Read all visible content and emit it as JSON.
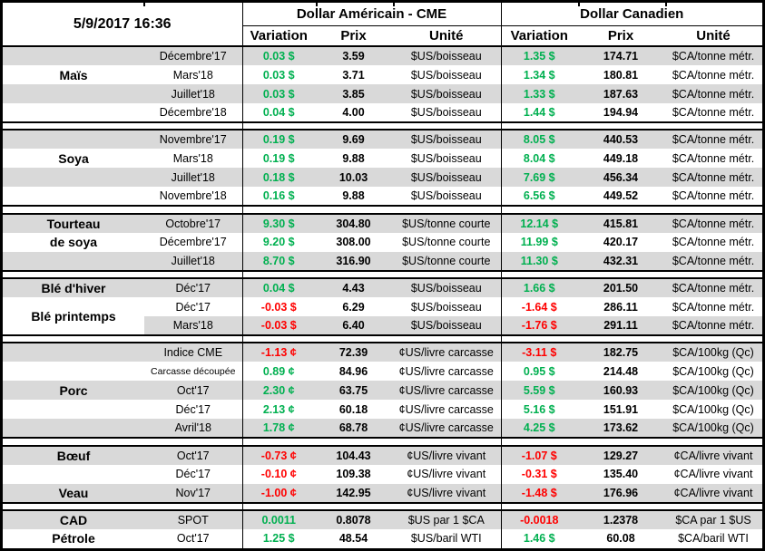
{
  "header": {
    "datetime": "5/9/2017 16:36",
    "us_section_title": "Dollar Américain - CME",
    "ca_section_title": "Dollar Canadien",
    "columns": {
      "variation": "Variation",
      "prix": "Prix",
      "unite": "Unité"
    }
  },
  "colors": {
    "positive": "#00B050",
    "negative": "#FF0000",
    "stripe": "#D9D9D9",
    "text": "#000000"
  },
  "groups": [
    {
      "name": "Maïs",
      "rows": [
        {
          "month": "Décembre'17",
          "shade": true,
          "us": {
            "variation": "0.03 $",
            "prix": "3.59",
            "unite": "$US/boisseau"
          },
          "ca": {
            "variation": "1.35 $",
            "prix": "174.71",
            "unite": "$CA/tonne métr."
          }
        },
        {
          "label": "Maïs",
          "month": "Mars'18",
          "shade": false,
          "us": {
            "variation": "0.03 $",
            "prix": "3.71",
            "unite": "$US/boisseau"
          },
          "ca": {
            "variation": "1.34 $",
            "prix": "180.81",
            "unite": "$CA/tonne métr."
          }
        },
        {
          "month": "Juillet'18",
          "shade": true,
          "us": {
            "variation": "0.03 $",
            "prix": "3.85",
            "unite": "$US/boisseau"
          },
          "ca": {
            "variation": "1.33 $",
            "prix": "187.63",
            "unite": "$CA/tonne métr."
          }
        },
        {
          "month": "Décembre'18",
          "shade": false,
          "us": {
            "variation": "0.04 $",
            "prix": "4.00",
            "unite": "$US/boisseau"
          },
          "ca": {
            "variation": "1.44 $",
            "prix": "194.94",
            "unite": "$CA/tonne métr."
          }
        }
      ]
    },
    {
      "name": "Soya",
      "rows": [
        {
          "month": "Novembre'17",
          "shade": true,
          "us": {
            "variation": "0.19 $",
            "prix": "9.69",
            "unite": "$US/boisseau"
          },
          "ca": {
            "variation": "8.05 $",
            "prix": "440.53",
            "unite": "$CA/tonne métr."
          }
        },
        {
          "label": "Soya",
          "month": "Mars'18",
          "shade": false,
          "us": {
            "variation": "0.19 $",
            "prix": "9.88",
            "unite": "$US/boisseau"
          },
          "ca": {
            "variation": "8.04 $",
            "prix": "449.18",
            "unite": "$CA/tonne métr."
          }
        },
        {
          "month": "Juillet'18",
          "shade": true,
          "us": {
            "variation": "0.18 $",
            "prix": "10.03",
            "unite": "$US/boisseau"
          },
          "ca": {
            "variation": "7.69 $",
            "prix": "456.34",
            "unite": "$CA/tonne métr."
          }
        },
        {
          "month": "Novembre'18",
          "shade": false,
          "us": {
            "variation": "0.16 $",
            "prix": "9.88",
            "unite": "$US/boisseau"
          },
          "ca": {
            "variation": "6.56 $",
            "prix": "449.52",
            "unite": "$CA/tonne métr."
          }
        }
      ]
    },
    {
      "name": "Tourteau de soya",
      "rows": [
        {
          "label": "Tourteau",
          "month": "Octobre'17",
          "shade": true,
          "us": {
            "variation": "9.30 $",
            "prix": "304.80",
            "unite": "$US/tonne courte"
          },
          "ca": {
            "variation": "12.14 $",
            "prix": "415.81",
            "unite": "$CA/tonne métr."
          }
        },
        {
          "label": "de soya",
          "month": "Décembre'17",
          "shade": false,
          "us": {
            "variation": "9.20 $",
            "prix": "308.00",
            "unite": "$US/tonne courte"
          },
          "ca": {
            "variation": "11.99 $",
            "prix": "420.17",
            "unite": "$CA/tonne métr."
          }
        },
        {
          "month": "Juillet'18",
          "shade": true,
          "us": {
            "variation": "8.70 $",
            "prix": "316.90",
            "unite": "$US/tonne courte"
          },
          "ca": {
            "variation": "11.30 $",
            "prix": "432.31",
            "unite": "$CA/tonne métr."
          }
        }
      ]
    },
    {
      "name": "Blé",
      "rows": [
        {
          "label": "Blé d'hiver",
          "month": "Déc'17",
          "shade": true,
          "us": {
            "variation": "0.04 $",
            "prix": "4.43",
            "unite": "$US/boisseau"
          },
          "ca": {
            "variation": "1.66 $",
            "prix": "201.50",
            "unite": "$CA/tonne métr."
          }
        },
        {
          "label": "Blé printemps",
          "label_rowspan": 2,
          "month": "Déc'17",
          "shade": false,
          "us": {
            "variation": "-0.03 $",
            "prix": "6.29",
            "unite": "$US/boisseau"
          },
          "ca": {
            "variation": "-1.64 $",
            "prix": "286.11",
            "unite": "$CA/tonne métr."
          }
        },
        {
          "skip_label": true,
          "month": "Mars'18",
          "shade": true,
          "us": {
            "variation": "-0.03 $",
            "prix": "6.40",
            "unite": "$US/boisseau"
          },
          "ca": {
            "variation": "-1.76 $",
            "prix": "291.11",
            "unite": "$CA/tonne métr."
          }
        }
      ]
    },
    {
      "name": "Porc",
      "rows": [
        {
          "month": "Indice CME",
          "shade": true,
          "us": {
            "variation": "-1.13 ¢",
            "prix": "72.39",
            "unite": "¢US/livre carcasse"
          },
          "ca": {
            "variation": "-3.11 $",
            "prix": "182.75",
            "unite": "$CA/100kg (Qc)"
          }
        },
        {
          "month": "Carcasse découpée",
          "month_small": true,
          "shade": false,
          "us": {
            "variation": "0.89 ¢",
            "prix": "84.96",
            "unite": "¢US/livre carcasse"
          },
          "ca": {
            "variation": "0.95 $",
            "prix": "214.48",
            "unite": "$CA/100kg (Qc)"
          }
        },
        {
          "label": "Porc",
          "month": "Oct'17",
          "shade": true,
          "us": {
            "variation": "2.30 ¢",
            "prix": "63.75",
            "unite": "¢US/livre carcasse"
          },
          "ca": {
            "variation": "5.59 $",
            "prix": "160.93",
            "unite": "$CA/100kg (Qc)"
          }
        },
        {
          "month": "Déc'17",
          "shade": false,
          "us": {
            "variation": "2.13 ¢",
            "prix": "60.18",
            "unite": "¢US/livre carcasse"
          },
          "ca": {
            "variation": "5.16 $",
            "prix": "151.91",
            "unite": "$CA/100kg (Qc)"
          }
        },
        {
          "month": "Avril'18",
          "shade": true,
          "us": {
            "variation": "1.78 ¢",
            "prix": "68.78",
            "unite": "¢US/livre carcasse"
          },
          "ca": {
            "variation": "4.25 $",
            "prix": "173.62",
            "unite": "$CA/100kg (Qc)"
          }
        }
      ]
    },
    {
      "name": "Bœuf / Veau",
      "rows": [
        {
          "label": "Bœuf",
          "month": "Oct'17",
          "shade": true,
          "us": {
            "variation": "-0.73 ¢",
            "prix": "104.43",
            "unite": "¢US/livre vivant"
          },
          "ca": {
            "variation": "-1.07 $",
            "prix": "129.27",
            "unite": "¢CA/livre vivant"
          }
        },
        {
          "month": "Déc'17",
          "shade": false,
          "us": {
            "variation": "-0.10 ¢",
            "prix": "109.38",
            "unite": "¢US/livre vivant"
          },
          "ca": {
            "variation": "-0.31 $",
            "prix": "135.40",
            "unite": "¢CA/livre vivant"
          }
        },
        {
          "label": "Veau",
          "month": "Nov'17",
          "shade": true,
          "us": {
            "variation": "-1.00 ¢",
            "prix": "142.95",
            "unite": "¢US/livre vivant"
          },
          "ca": {
            "variation": "-1.48 $",
            "prix": "176.96",
            "unite": "¢CA/livre vivant"
          }
        }
      ]
    },
    {
      "name": "CAD / Pétrole",
      "rows": [
        {
          "label": "CAD",
          "month": "SPOT",
          "shade": true,
          "us": {
            "variation": "0.0011",
            "prix": "0.8078",
            "unite": "$US par 1 $CA"
          },
          "ca": {
            "variation": "-0.0018",
            "prix": "1.2378",
            "unite": "$CA par 1 $US"
          }
        },
        {
          "label": "Pétrole",
          "month": "Oct'17",
          "shade": false,
          "us": {
            "variation": "1.25 $",
            "prix": "48.54",
            "unite": "$US/baril WTI"
          },
          "ca": {
            "variation": "1.46 $",
            "prix": "60.08",
            "unite": "$CA/baril WTI"
          }
        }
      ]
    }
  ]
}
